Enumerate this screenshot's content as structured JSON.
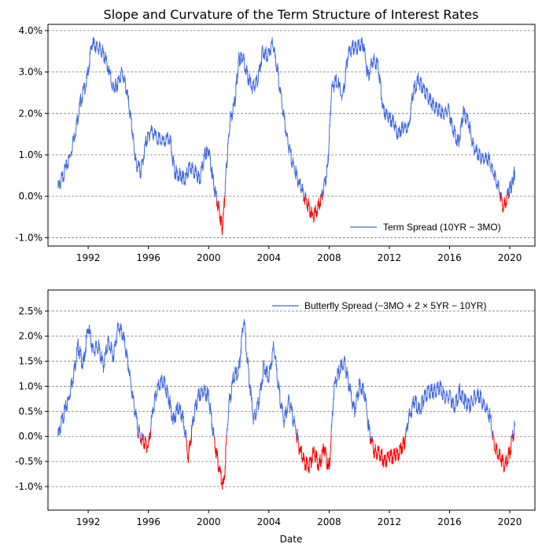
{
  "colors": {
    "positive": "#4169e1",
    "negative": "#ff0000",
    "grid": "#7f7f7f"
  },
  "chart_data": [
    {
      "type": "line",
      "title": "Slope and Curvature of the Term Structure of Interest Rates",
      "xlabel": "",
      "ylabel": "",
      "xlim": [
        "1989-05-01",
        "2021-09-01"
      ],
      "ylim": [
        -1.2,
        4.15
      ],
      "y_ticks": [
        -1.0,
        0.0,
        1.0,
        2.0,
        3.0,
        4.0
      ],
      "y_tick_labels": [
        "-1.0%",
        "0.0%",
        "1.0%",
        "2.0%",
        "3.0%",
        "4.0%"
      ],
      "x_tick_labels": [
        "1992",
        "1996",
        "2000",
        "2004",
        "2008",
        "2012",
        "2016",
        "2020"
      ],
      "grid": "horizontal dashed",
      "legend_position": "lower-right",
      "series": [
        {
          "name": "Term Spread (10YR − 3MO)",
          "x": [
            "1990-01-01",
            "1990-05-01",
            "1990-10-01",
            "1991-03-01",
            "1991-07-01",
            "1991-12-01",
            "1992-04-01",
            "1992-08-01",
            "1992-12-01",
            "1993-04-01",
            "1993-09-01",
            "1993-12-01",
            "1994-04-01",
            "1994-08-01",
            "1994-12-01",
            "1995-03-01",
            "1995-07-01",
            "1995-11-01",
            "1996-03-01",
            "1996-08-01",
            "1997-01-01",
            "1997-06-01",
            "1997-10-01",
            "1998-02-01",
            "1998-06-01",
            "1998-10-01",
            "1999-02-01",
            "1999-06-01",
            "1999-10-01",
            "2000-01-01",
            "2000-05-01",
            "2000-09-01",
            "2000-12-01",
            "2001-03-01",
            "2001-06-01",
            "2001-10-01",
            "2002-01-01",
            "2002-04-01",
            "2002-08-01",
            "2002-12-01",
            "2003-04-01",
            "2003-08-01",
            "2003-12-01",
            "2004-04-01",
            "2004-08-01",
            "2004-12-01",
            "2005-04-01",
            "2005-08-01",
            "2005-12-01",
            "2006-04-01",
            "2006-08-01",
            "2006-12-01",
            "2007-04-01",
            "2007-08-01",
            "2007-12-01",
            "2008-03-01",
            "2008-07-01",
            "2008-12-01",
            "2009-04-01",
            "2009-08-01",
            "2009-12-01",
            "2010-04-01",
            "2010-08-01",
            "2010-12-01",
            "2011-04-01",
            "2011-08-01",
            "2011-12-01",
            "2012-04-01",
            "2012-08-01",
            "2012-12-01",
            "2013-04-01",
            "2013-08-01",
            "2013-12-01",
            "2014-04-01",
            "2014-08-01",
            "2014-12-01",
            "2015-04-01",
            "2015-08-01",
            "2015-12-01",
            "2016-04-01",
            "2016-08-01",
            "2016-12-01",
            "2017-04-01",
            "2017-08-01",
            "2017-12-01",
            "2018-04-01",
            "2018-08-01",
            "2018-12-01",
            "2019-04-01",
            "2019-08-01",
            "2019-12-01",
            "2020-03-01",
            "2020-05-01"
          ],
          "values": [
            0.2,
            0.5,
            0.9,
            1.6,
            2.3,
            2.8,
            3.7,
            3.6,
            3.5,
            3.2,
            2.6,
            2.7,
            3.0,
            2.5,
            1.6,
            0.8,
            0.6,
            1.3,
            1.6,
            1.4,
            1.3,
            1.4,
            0.6,
            0.5,
            0.4,
            0.7,
            0.6,
            0.4,
            1.0,
            1.1,
            0.3,
            -0.3,
            -0.8,
            0.6,
            1.8,
            2.3,
            3.3,
            3.4,
            2.9,
            2.6,
            2.8,
            3.5,
            3.4,
            3.7,
            3.0,
            2.1,
            1.3,
            0.8,
            0.4,
            0.1,
            -0.2,
            -0.5,
            -0.3,
            0.1,
            0.7,
            2.6,
            2.8,
            2.4,
            3.4,
            3.6,
            3.6,
            3.7,
            2.9,
            3.3,
            3.2,
            2.1,
            1.9,
            1.8,
            1.5,
            1.7,
            1.6,
            2.5,
            2.8,
            2.6,
            2.4,
            2.2,
            2.1,
            2.0,
            2.1,
            1.6,
            1.3,
            2.0,
            1.8,
            1.2,
            1.0,
            0.9,
            0.9,
            0.6,
            0.2,
            -0.3,
            0.1,
            0.3,
            0.6
          ]
        }
      ]
    },
    {
      "type": "line",
      "title": "",
      "xlabel": "Date",
      "ylabel": "",
      "xlim": [
        "1989-05-01",
        "2021-09-01"
      ],
      "ylim": [
        -1.47,
        2.92
      ],
      "y_ticks": [
        -1.0,
        -0.5,
        0.0,
        0.5,
        1.0,
        1.5,
        2.0,
        2.5
      ],
      "y_tick_labels": [
        "-1.0%",
        "-0.5%",
        "0.0%",
        "0.5%",
        "1.0%",
        "1.5%",
        "2.0%",
        "2.5%"
      ],
      "x_tick_labels": [
        "1992",
        "1996",
        "2000",
        "2004",
        "2008",
        "2012",
        "2016",
        "2020"
      ],
      "grid": "horizontal dashed",
      "legend_position": "upper-right",
      "series": [
        {
          "name": "Butterfly Spread (−3MO + 2 × 5YR − 10YR)",
          "x": [
            "1990-01-01",
            "1990-05-01",
            "1990-09-01",
            "1991-01-01",
            "1991-05-01",
            "1991-09-01",
            "1992-01-01",
            "1992-05-01",
            "1992-09-01",
            "1993-01-01",
            "1993-05-01",
            "1993-09-01",
            "1994-01-01",
            "1994-05-01",
            "1994-09-01",
            "1995-01-01",
            "1995-05-01",
            "1995-09-01",
            "1996-01-01",
            "1996-05-01",
            "1996-09-01",
            "1997-01-01",
            "1997-05-01",
            "1997-09-01",
            "1998-01-01",
            "1998-05-01",
            "1998-09-01",
            "1999-01-01",
            "1999-05-01",
            "1999-09-01",
            "2000-01-01",
            "2000-05-01",
            "2000-09-01",
            "2001-01-01",
            "2001-05-01",
            "2001-09-01",
            "2002-01-01",
            "2002-05-01",
            "2002-09-01",
            "2003-01-01",
            "2003-05-01",
            "2003-09-01",
            "2004-01-01",
            "2004-05-01",
            "2004-09-01",
            "2005-01-01",
            "2005-05-01",
            "2005-09-01",
            "2006-01-01",
            "2006-05-01",
            "2006-09-01",
            "2007-01-01",
            "2007-05-01",
            "2007-09-01",
            "2008-01-01",
            "2008-05-01",
            "2008-09-01",
            "2009-01-01",
            "2009-05-01",
            "2009-09-01",
            "2010-01-01",
            "2010-05-01",
            "2010-09-01",
            "2011-01-01",
            "2011-05-01",
            "2011-09-01",
            "2012-01-01",
            "2012-05-01",
            "2012-09-01",
            "2013-01-01",
            "2013-05-01",
            "2013-09-01",
            "2014-01-01",
            "2014-05-01",
            "2014-09-01",
            "2015-01-01",
            "2015-05-01",
            "2015-09-01",
            "2016-01-01",
            "2016-05-01",
            "2016-09-01",
            "2017-01-01",
            "2017-05-01",
            "2017-09-01",
            "2018-01-01",
            "2018-05-01",
            "2018-09-01",
            "2019-01-01",
            "2019-05-01",
            "2019-09-01",
            "2020-01-01",
            "2020-05-01"
          ],
          "values": [
            0.0,
            0.4,
            0.7,
            1.2,
            1.8,
            1.4,
            2.2,
            1.7,
            1.8,
            1.4,
            1.9,
            1.6,
            2.2,
            2.0,
            1.4,
            0.7,
            0.1,
            -0.1,
            -0.2,
            0.6,
            1.0,
            1.1,
            0.8,
            0.3,
            0.6,
            0.3,
            -0.4,
            0.4,
            0.8,
            0.9,
            0.8,
            0.0,
            -0.6,
            -1.0,
            0.6,
            1.2,
            1.3,
            2.4,
            1.2,
            0.3,
            0.7,
            1.4,
            1.2,
            1.8,
            0.9,
            0.3,
            0.7,
            0.3,
            -0.2,
            -0.5,
            -0.6,
            -0.3,
            -0.6,
            -0.2,
            -0.7,
            1.0,
            1.3,
            1.5,
            1.0,
            0.5,
            1.0,
            0.9,
            0.1,
            -0.3,
            -0.3,
            -0.5,
            -0.4,
            -0.4,
            -0.3,
            -0.1,
            0.4,
            0.7,
            0.5,
            0.8,
            0.9,
            0.9,
            1.0,
            0.8,
            0.8,
            0.6,
            0.9,
            0.7,
            0.6,
            0.8,
            0.8,
            0.6,
            0.4,
            -0.2,
            -0.4,
            -0.6,
            -0.3,
            0.2
          ]
        }
      ]
    }
  ]
}
